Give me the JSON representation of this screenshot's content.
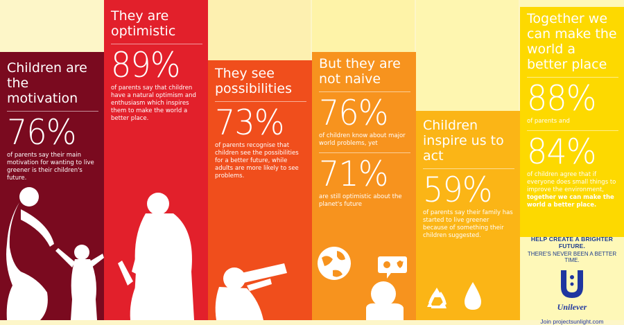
{
  "panels": [
    {
      "id": "motivation",
      "color": "#7a0a1f",
      "heading": "Children are the motivation",
      "stat": "76%",
      "text": "of parents say their main motivation for wanting to live greener is their children's future."
    },
    {
      "id": "optimistic",
      "color": "#e2202b",
      "heading": "They are optimistic",
      "stat": "89%",
      "text": "of parents say that children have a natural optimism and enthusiasm which inspires them to make the world a better place."
    },
    {
      "id": "possibilities",
      "color": "#f04e1c",
      "heading": "They see possibilities",
      "stat": "73%",
      "text": "of parents recognise that children see the possibilities for a better future, while adults are more likely to see problems."
    },
    {
      "id": "naive",
      "color": "#f7931e",
      "heading": "But they are not naive",
      "stat": "76%",
      "text": "of children know about major world problems, yet",
      "stat2": "71%",
      "text2": "are still optimistic about the planet's future"
    },
    {
      "id": "inspire",
      "color": "#fbb516",
      "heading": "Children inspire us to act",
      "stat": "59%",
      "text": "of parents say their family has started to live greener because of something their children suggested."
    },
    {
      "id": "together",
      "color": "#fdd900",
      "heading": "Together we can make the world a better place",
      "stat": "88%",
      "text": "of parents and",
      "stat2": "84%",
      "text2": "of children agree that if everyone does small things to improve the environment,",
      "text2_bold": "together we can make the world a better place."
    }
  ],
  "footer": {
    "tagline1": "HELP CREATE A BRIGHTER FUTURE.",
    "tagline2": "THERE'S NEVER BEEN A BETTER TIME.",
    "brand": "Unilever",
    "link": "Join projectsunlight.com"
  },
  "colors": {
    "background": "#fdf6c8",
    "tagline": "#1a3a8c",
    "brand": "#1f36a0"
  }
}
